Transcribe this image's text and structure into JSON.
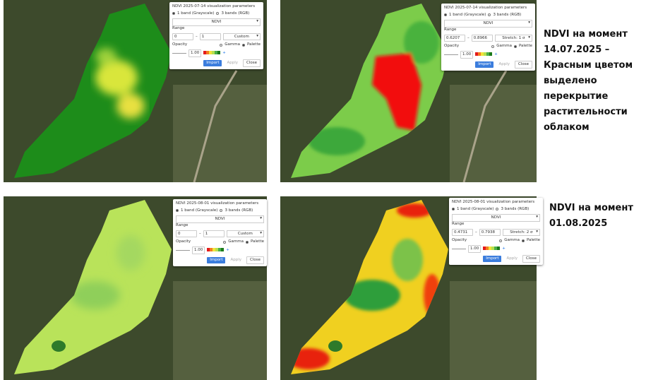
{
  "panels": [
    {
      "title": "NDVI 2025-07-14 visualization parameters",
      "band_gray": "1 band (Grayscale)",
      "band_rgb": "3 bands (RGB)",
      "band": "NDVI",
      "range_label": "Range",
      "range_min": "0",
      "range_max": "1",
      "range_mode": "Custom",
      "opacity_label": "Opacity",
      "gamma": "Gamma",
      "palette": "Palette",
      "opacity": "1.00",
      "import": "Import",
      "apply": "Apply",
      "close": "Close"
    },
    {
      "title": "NDVI 2025-07-14 visualization parameters",
      "band_gray": "1 band (Grayscale)",
      "band_rgb": "3 bands (RGB)",
      "band": "NDVI",
      "range_label": "Range",
      "range_min": "0.6207",
      "range_max": "0.8966",
      "range_mode": "Stretch: 1 σ",
      "opacity_label": "Opacity",
      "gamma": "Gamma",
      "palette": "Palette",
      "opacity": "1.00",
      "import": "Import",
      "apply": "Apply",
      "close": "Close"
    },
    {
      "title": "NDVI 2025-08-01 visualization parameters",
      "band_gray": "1 band (Grayscale)",
      "band_rgb": "3 bands (RGB)",
      "band": "NDVI",
      "range_label": "Range",
      "range_min": "0",
      "range_max": "1",
      "range_mode": "Custom",
      "opacity_label": "Opacity",
      "gamma": "Gamma",
      "palette": "Palette",
      "opacity": "1.00",
      "import": "Import",
      "apply": "Apply",
      "close": "Close"
    },
    {
      "title": "NDVI 2025-08-01 visualization parameters",
      "band_gray": "1 band (Grayscale)",
      "band_rgb": "3 bands (RGB)",
      "band": "NDVI",
      "range_label": "Range",
      "range_min": "0.4731",
      "range_max": "0.7938",
      "range_mode": "Stretch: 2 σ",
      "opacity_label": "Opacity",
      "gamma": "Gamma",
      "palette": "Palette",
      "opacity": "1.00",
      "import": "Import",
      "apply": "Apply",
      "close": "Close"
    }
  ],
  "captions": [
    "NDVI на момент 14.07.2025 – Красным цветом выделено перекрытие растительности облаком",
    "NDVI на момент 01.08.2025"
  ]
}
